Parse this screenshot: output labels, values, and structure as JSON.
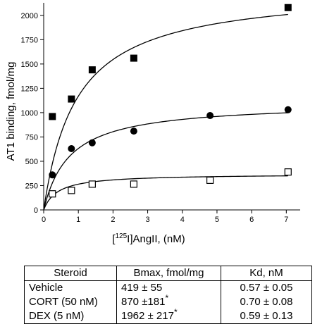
{
  "chart_data": {
    "type": "scatter",
    "xlabel_prefix": "[",
    "xlabel_sup": "125",
    "xlabel_suffix": "I]AngII, (nM)",
    "ylabel": "AT1 binding, fmol/mg",
    "xlim": [
      0,
      7.4
    ],
    "ylim": [
      0,
      2100
    ],
    "xticks": [
      0,
      1,
      2,
      3,
      4,
      5,
      6,
      7
    ],
    "yticks": [
      0,
      250,
      500,
      750,
      1000,
      1250,
      1500,
      1750,
      2000
    ],
    "grid": false,
    "legend": "none",
    "series": [
      {
        "marker": "filled-square",
        "x": [
          0.25,
          0.8,
          1.4,
          2.6,
          7.05
        ],
        "y": [
          960,
          1140,
          1440,
          1560,
          2080
        ],
        "fit": {
          "bmax": 2280,
          "kd": 0.95
        }
      },
      {
        "marker": "filled-circle",
        "x": [
          0.25,
          0.8,
          1.4,
          2.6,
          4.8,
          7.05
        ],
        "y": [
          360,
          630,
          690,
          810,
          970,
          1030
        ],
        "fit": {
          "bmax": 1105,
          "kd": 0.75
        }
      },
      {
        "marker": "open-square",
        "x": [
          0.25,
          0.8,
          1.4,
          2.6,
          4.8,
          7.05
        ],
        "y": [
          165,
          200,
          265,
          265,
          305,
          390
        ],
        "fit": {
          "bmax": 370,
          "kd": 0.4
        }
      }
    ]
  },
  "table": {
    "headers": [
      "Steroid",
      "Bmax, fmol/mg",
      "Kd, nM"
    ],
    "rows": [
      {
        "steroid": "Vehicle",
        "bmax": "419 ± 55",
        "bmax_mark": "",
        "kd": "0.57 ± 0.05"
      },
      {
        "steroid": "CORT (50 nM)",
        "bmax": "870 ±181",
        "bmax_mark": "*",
        "kd": "0.70 ± 0.08"
      },
      {
        "steroid": "DEX (5 nM)",
        "bmax": "1962 ± 217",
        "bmax_mark": "*",
        "kd": "0.59 ± 0.13"
      }
    ]
  }
}
